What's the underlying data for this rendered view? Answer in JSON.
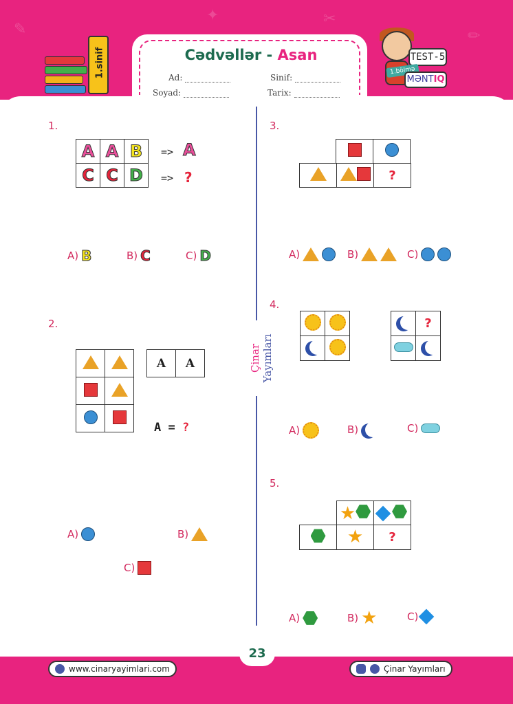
{
  "header": {
    "title_main": "Cədvəllər -",
    "title_accent": "Asan",
    "ad_label": "Ad:",
    "soyad_label": "Soyad:",
    "sinif_label": "Sinif:",
    "tarix_label": "Tarix:",
    "grade_badge": "1.sinif",
    "test_label": "TEST-5",
    "section_label": "1.bölmə",
    "logic_label_a": "MƏNT",
    "logic_label_b": "IQ"
  },
  "side_brand": {
    "a": "Çinar",
    "b": "Yayımları"
  },
  "q1": {
    "number": "1.",
    "row1": [
      "A",
      "A",
      "B"
    ],
    "row1_result": "A",
    "row2": [
      "C",
      "C",
      "D"
    ],
    "row2_result": "?",
    "arrow": "=>",
    "options": [
      {
        "label": "A)",
        "value": "B"
      },
      {
        "label": "B)",
        "value": "C"
      },
      {
        "label": "C)",
        "value": "D"
      }
    ]
  },
  "q2": {
    "number": "2.",
    "key": [
      "A",
      "A"
    ],
    "equation": "A =",
    "qmark": "?",
    "options": [
      {
        "label": "A)"
      },
      {
        "label": "B)"
      },
      {
        "label": "C)"
      }
    ]
  },
  "q3": {
    "number": "3.",
    "qmark": "?",
    "options": [
      {
        "label": "A)"
      },
      {
        "label": "B)"
      },
      {
        "label": "C)"
      }
    ]
  },
  "q4": {
    "number": "4.",
    "qmark": "?",
    "options": [
      {
        "label": "A)"
      },
      {
        "label": "B)"
      },
      {
        "label": "C)"
      }
    ]
  },
  "q5": {
    "number": "5.",
    "qmark": "?",
    "options": [
      {
        "label": "A)"
      },
      {
        "label": "B)"
      },
      {
        "label": "C)"
      }
    ]
  },
  "footer": {
    "page": "23",
    "website": "www.cinaryayimlari.com",
    "social": "Çinar Yayımları"
  },
  "colors": {
    "brand_pink": "#e8237f",
    "title_green": "#1d6b4f",
    "divider_blue": "#4857a6"
  }
}
